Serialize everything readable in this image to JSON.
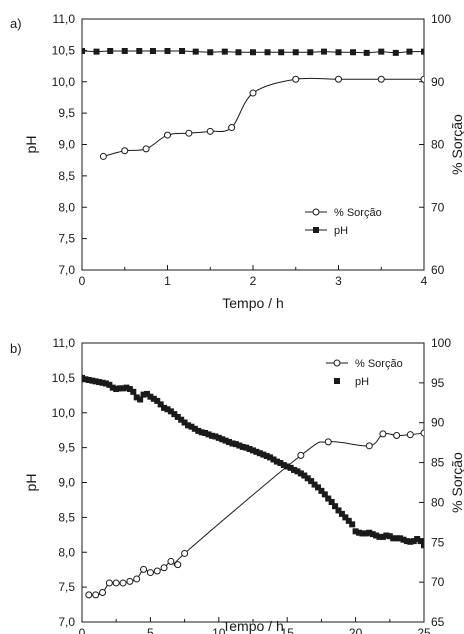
{
  "chart_data": [
    {
      "panel_label": "a)",
      "type": "line",
      "xlabel": "Tempo / h",
      "ylabel_left": "pH",
      "ylabel_right": "% Sorção",
      "xlim": [
        0,
        4
      ],
      "ylim_left": [
        7.0,
        11.0
      ],
      "ylim_right": [
        60,
        100
      ],
      "x_ticks": [
        "0",
        "1",
        "2",
        "3",
        "4"
      ],
      "y_left_ticks": [
        "7,0",
        "7,5",
        "8,0",
        "8,5",
        "9,0",
        "9,5",
        "10,0",
        "10,5",
        "11,0"
      ],
      "y_right_ticks": [
        "60",
        "70",
        "80",
        "90",
        "100"
      ],
      "legend_position": "bottom-right",
      "series": [
        {
          "name": "% Sorção",
          "axis": "right",
          "marker": "open-circle",
          "line": "smooth",
          "x": [
            0.25,
            0.5,
            0.75,
            1.0,
            1.25,
            1.5,
            1.75,
            2.0,
            2.5,
            3.0,
            3.5,
            4.0
          ],
          "y": [
            78.1,
            79.0,
            79.3,
            81.5,
            81.8,
            82.1,
            82.7,
            88.2,
            90.4,
            90.4,
            90.4,
            90.4
          ]
        },
        {
          "name": "pH",
          "axis": "left",
          "marker": "filled-square",
          "line": "straight",
          "x": [
            0,
            0.17,
            0.33,
            0.5,
            0.67,
            0.83,
            1.0,
            1.17,
            1.33,
            1.5,
            1.67,
            1.83,
            2.0,
            2.17,
            2.33,
            2.5,
            2.67,
            2.83,
            3.0,
            3.17,
            3.33,
            3.5,
            3.67,
            3.83,
            4.0
          ],
          "y": [
            10.49,
            10.48,
            10.49,
            10.49,
            10.49,
            10.49,
            10.49,
            10.49,
            10.48,
            10.47,
            10.48,
            10.47,
            10.47,
            10.47,
            10.47,
            10.47,
            10.47,
            10.48,
            10.47,
            10.47,
            10.46,
            10.48,
            10.46,
            10.48,
            10.48
          ]
        }
      ]
    },
    {
      "panel_label": "b)",
      "type": "line",
      "xlabel": "Tempo / h",
      "ylabel_left": "pH",
      "ylabel_right": "% Sorção",
      "xlim": [
        0,
        25
      ],
      "ylim_left": [
        7.0,
        11.0
      ],
      "ylim_right": [
        65,
        100
      ],
      "x_ticks": [
        "0",
        "5",
        "10",
        "15",
        "20",
        "25"
      ],
      "y_left_ticks": [
        "7,0",
        "7,5",
        "8,0",
        "8,5",
        "9,0",
        "9,5",
        "10,0",
        "10,5",
        "11,0"
      ],
      "y_right_ticks": [
        "65",
        "70",
        "75",
        "80",
        "85",
        "90",
        "95",
        "100"
      ],
      "legend_position": "top-right",
      "series": [
        {
          "name": "% Sorção",
          "axis": "right",
          "marker": "open-circle",
          "line": "smooth",
          "x": [
            0.5,
            1.0,
            1.5,
            2.0,
            2.5,
            3.0,
            3.5,
            4.0,
            4.5,
            5.0,
            5.5,
            6.0,
            6.5,
            7.0,
            7.5,
            16.0,
            18.0,
            21.0,
            22.0,
            23.0,
            24.0,
            25.0
          ],
          "y": [
            68.4,
            68.4,
            68.7,
            69.9,
            69.9,
            69.9,
            70.1,
            70.4,
            71.6,
            71.2,
            71.4,
            71.8,
            72.6,
            72.2,
            73.6,
            85.9,
            87.6,
            87.1,
            88.6,
            88.4,
            88.5,
            88.7
          ]
        },
        {
          "name": "pH",
          "axis": "left",
          "marker": "filled-square",
          "line": "none",
          "x": [
            0.0,
            0.25,
            0.5,
            0.75,
            1.0,
            1.25,
            1.5,
            1.75,
            2.0,
            2.25,
            2.5,
            2.75,
            3.0,
            3.25,
            3.5,
            3.75,
            4.0,
            4.25,
            4.5,
            4.75,
            5.0,
            5.25,
            5.5,
            5.75,
            6.0,
            6.25,
            6.5,
            6.75,
            7.0,
            7.25,
            7.5,
            7.75,
            8.0,
            8.25,
            8.5,
            8.75,
            9.0,
            9.25,
            9.5,
            9.75,
            10.0,
            10.25,
            10.5,
            10.75,
            11.0,
            11.25,
            11.5,
            11.75,
            12.0,
            12.25,
            12.5,
            12.75,
            13.0,
            13.25,
            13.5,
            13.75,
            14.0,
            14.25,
            14.5,
            14.75,
            15.0,
            15.25,
            15.5,
            15.75,
            16.0,
            16.25,
            16.5,
            16.75,
            17.0,
            17.25,
            17.5,
            17.75,
            18.0,
            18.25,
            18.5,
            18.75,
            19.0,
            19.25,
            19.5,
            19.75,
            20.0,
            20.25,
            20.5,
            20.75,
            21.0,
            21.25,
            21.5,
            21.75,
            22.0,
            22.25,
            22.5,
            22.75,
            23.0,
            23.25,
            23.5,
            23.75,
            24.0,
            24.25,
            24.5,
            24.75,
            25.0
          ],
          "y": [
            10.5,
            10.48,
            10.47,
            10.46,
            10.45,
            10.44,
            10.43,
            10.42,
            10.4,
            10.36,
            10.34,
            10.35,
            10.35,
            10.36,
            10.34,
            10.3,
            10.22,
            10.19,
            10.26,
            10.27,
            10.23,
            10.2,
            10.17,
            10.12,
            10.07,
            10.05,
            10.02,
            9.98,
            9.94,
            9.9,
            9.86,
            9.82,
            9.8,
            9.77,
            9.74,
            9.72,
            9.71,
            9.69,
            9.67,
            9.66,
            9.64,
            9.62,
            9.6,
            9.58,
            9.56,
            9.55,
            9.53,
            9.51,
            9.5,
            9.48,
            9.46,
            9.44,
            9.42,
            9.4,
            9.38,
            9.36,
            9.33,
            9.3,
            9.28,
            9.25,
            9.23,
            9.21,
            9.18,
            9.16,
            9.13,
            9.1,
            9.06,
            9.02,
            8.97,
            8.93,
            8.88,
            8.83,
            8.77,
            8.72,
            8.66,
            8.6,
            8.55,
            8.5,
            8.45,
            8.4,
            8.3,
            8.28,
            8.27,
            8.27,
            8.28,
            8.26,
            8.24,
            8.22,
            8.22,
            8.24,
            8.23,
            8.2,
            8.2,
            8.2,
            8.18,
            8.16,
            8.15,
            8.16,
            8.19,
            8.16,
            8.1
          ]
        }
      ]
    }
  ],
  "colors": {
    "ink": "#1a1a1a",
    "background": "#ffffff"
  }
}
